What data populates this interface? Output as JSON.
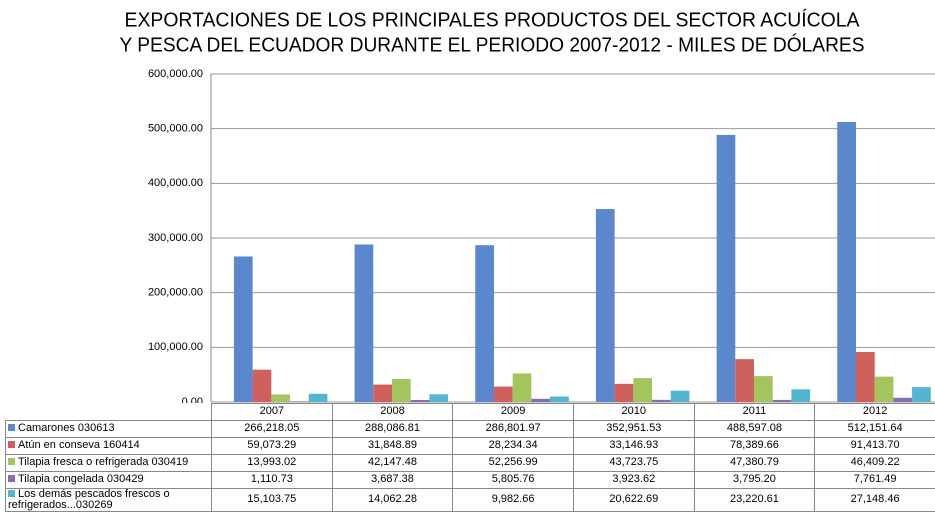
{
  "chart_data": {
    "type": "bar",
    "title": [
      "EXPORTACIONES DE LOS PRINCIPALES PRODUCTOS DEL SECTOR ACUÍCOLA",
      "Y PESCA DEL ECUADOR DURANTE EL PERIODO 2007-2012 - MILES DE DÓLARES"
    ],
    "categories": [
      "2007",
      "2008",
      "2009",
      "2010",
      "2011",
      "2012"
    ],
    "ylim": [
      0,
      600000
    ],
    "yticks": [
      {
        "value": 0,
        "label": "0.00"
      },
      {
        "value": 100000,
        "label": "100,000.00"
      },
      {
        "value": 200000,
        "label": "200,000.00"
      },
      {
        "value": 300000,
        "label": "300,000.00"
      },
      {
        "value": 400000,
        "label": "400,000.00"
      },
      {
        "value": 500000,
        "label": "500,000.00"
      },
      {
        "value": 600000,
        "label": "600,000.00"
      }
    ],
    "grid": true,
    "series": [
      {
        "name": "Camarones 030613",
        "color": "#5b87cc",
        "values": [
          266218.05,
          288086.81,
          286801.97,
          352951.53,
          488597.08,
          512151.64
        ],
        "value_labels": [
          "266,218.05",
          "288,086.81",
          "286,801.97",
          "352,951.53",
          "488,597.08",
          "512,151.64"
        ]
      },
      {
        "name": "Atún en conseva 160414",
        "color": "#d0605c",
        "values": [
          59073.29,
          31848.89,
          28234.34,
          33146.93,
          78389.66,
          91413.7
        ],
        "value_labels": [
          "59,073.29",
          "31,848.89",
          "28,234.34",
          "33,146.93",
          "78,389.66",
          "91,413.70"
        ]
      },
      {
        "name": "Tilapia fresca o refrigerada 030419",
        "color": "#a3c55e",
        "values": [
          13993.02,
          42147.48,
          52256.99,
          43723.75,
          47380.79,
          46409.22
        ],
        "value_labels": [
          "13,993.02",
          "42,147.48",
          "52,256.99",
          "43,723.75",
          "47,380.79",
          "46,409.22"
        ]
      },
      {
        "name": "Tilapia congelada 030429",
        "color": "#8a6db0",
        "values": [
          1110.73,
          3687.38,
          5805.76,
          3923.62,
          3795.2,
          7761.49
        ],
        "value_labels": [
          "1,110.73",
          "3,687.38",
          "5,805.76",
          "3,923.62",
          "3,795.20",
          "7,761.49"
        ]
      },
      {
        "name": "Los demás pescados frescos o refrigerados...030269",
        "color": "#52b6d2",
        "values": [
          15103.75,
          14062.28,
          9982.66,
          20622.69,
          23220.61,
          27148.46
        ],
        "value_labels": [
          "15,103.75",
          "14,062.28",
          "9,982.66",
          "20,622.69",
          "23,220.61",
          "27,148.46"
        ]
      }
    ]
  }
}
